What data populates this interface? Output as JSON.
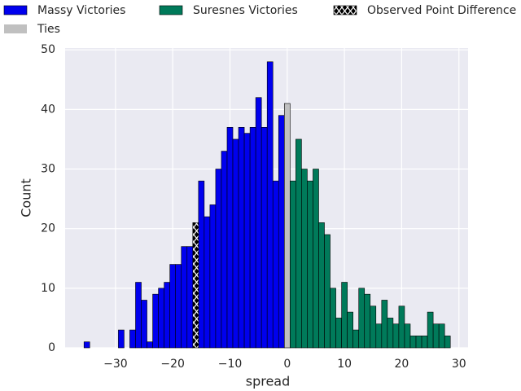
{
  "chart_data": {
    "type": "histogram",
    "x_label": "spread",
    "y_label": "Count",
    "xlim": [
      -38.8,
      31.6
    ],
    "ylim": [
      0,
      50.3
    ],
    "xticks": [
      {
        "value": -30,
        "label": "−30"
      },
      {
        "value": -20,
        "label": "−20"
      },
      {
        "value": -10,
        "label": "−10"
      },
      0,
      10,
      20,
      30
    ],
    "yticks": [
      0,
      10,
      20,
      30,
      40,
      50
    ],
    "grid": true,
    "background": "#eaeaf2",
    "bin_width": 1,
    "series": [
      {
        "name": "Massy Victories",
        "color": "#0000ee",
        "x": [
          -35,
          -29,
          -27,
          -26,
          -25,
          -24,
          -23,
          -22,
          -21,
          -20,
          -19,
          -18,
          -17,
          -15,
          -14,
          -13,
          -12,
          -11,
          -10,
          -9,
          -8,
          -7,
          -6,
          -5,
          -4,
          -3,
          -2,
          -1
        ],
        "values": [
          1,
          3,
          3,
          11,
          8,
          1,
          9,
          10,
          11,
          14,
          14,
          17,
          17,
          28,
          22,
          24,
          30,
          33,
          37,
          35,
          37,
          36,
          37,
          42,
          37,
          48,
          28,
          39
        ]
      },
      {
        "name": "Suresnes Victories",
        "color": "#007a5a",
        "x": [
          1,
          2,
          3,
          4,
          5,
          6,
          7,
          8,
          9,
          10,
          11,
          12,
          13,
          14,
          15,
          16,
          17,
          18,
          19,
          20,
          21,
          22,
          23,
          24,
          25,
          26,
          27,
          28
        ],
        "values": [
          28,
          35,
          30,
          28,
          30,
          21,
          19,
          10,
          5,
          11,
          6,
          3,
          10,
          9,
          7,
          4,
          8,
          5,
          4,
          7,
          4,
          2,
          2,
          2,
          6,
          4,
          4,
          2
        ]
      },
      {
        "name": "Observed Point Difference",
        "color": "#000000",
        "hatch": true,
        "x": [
          -16
        ],
        "values": [
          21
        ]
      },
      {
        "name": "Ties",
        "color": "#c0c0c0",
        "x": [
          0
        ],
        "values": [
          41
        ]
      }
    ]
  }
}
